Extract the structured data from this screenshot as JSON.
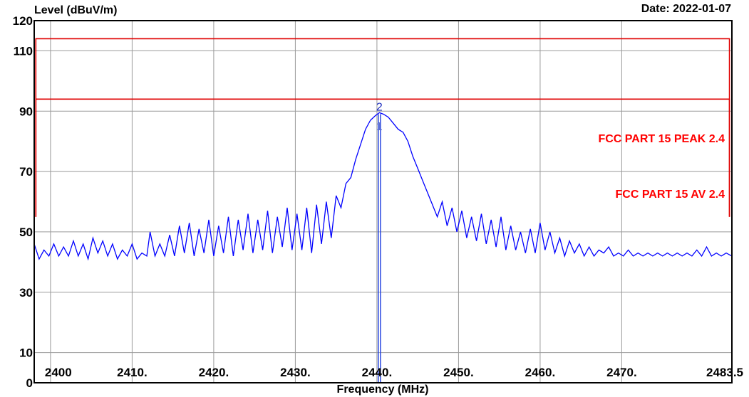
{
  "header": {
    "ylabel": "Level (dBuV/m)",
    "date": "Date: 2022-01-07"
  },
  "chart_data": {
    "type": "line",
    "xlabel": "Frequency (MHz)",
    "ylabel": "Level (dBuV/m)",
    "xlim": [
      2398,
      2483.5
    ],
    "ylim": [
      0,
      120
    ],
    "grid": true,
    "x_ticks": [
      {
        "value": 2400,
        "label": "2400"
      },
      {
        "value": 2410,
        "label": "2410."
      },
      {
        "value": 2420,
        "label": "2420."
      },
      {
        "value": 2430,
        "label": "2430."
      },
      {
        "value": 2440,
        "label": "2440."
      },
      {
        "value": 2450,
        "label": "2450."
      },
      {
        "value": 2460,
        "label": "2460."
      },
      {
        "value": 2470,
        "label": "2470."
      },
      {
        "value": 2483.5,
        "label": "2483.5"
      }
    ],
    "y_ticks": [
      0,
      10,
      30,
      50,
      70,
      90,
      110,
      120
    ],
    "limits": [
      {
        "name": "FCC PART 15 PEAK 2.4",
        "level": 114,
        "x_range": [
          2398.2,
          2483.2
        ],
        "color": "#e00000"
      },
      {
        "name": "FCC PART 15 AV 2.4",
        "level": 94,
        "x_range": [
          2398.2,
          2483.2
        ],
        "color": "#e00000"
      }
    ],
    "limit_labels_shown": [
      "FCC PART 15 PEAK 2.4",
      "FCC PART 15 AV 2.4"
    ],
    "markers": [
      {
        "label": "1",
        "x": 2440.3,
        "y": 86
      },
      {
        "label": "2",
        "x": 2440.3,
        "y": 89.5
      }
    ],
    "series": [
      {
        "color": "#0000ff",
        "points": [
          [
            2398,
            46
          ],
          [
            2398.6,
            41
          ],
          [
            2399.2,
            44
          ],
          [
            2399.8,
            42
          ],
          [
            2400.4,
            46
          ],
          [
            2401,
            42
          ],
          [
            2401.6,
            45
          ],
          [
            2402.2,
            42
          ],
          [
            2402.8,
            47
          ],
          [
            2403.4,
            42
          ],
          [
            2404,
            46
          ],
          [
            2404.6,
            41
          ],
          [
            2405.2,
            48
          ],
          [
            2405.8,
            43
          ],
          [
            2406.4,
            47
          ],
          [
            2407,
            42
          ],
          [
            2407.6,
            46
          ],
          [
            2408.2,
            41
          ],
          [
            2408.8,
            44
          ],
          [
            2409.4,
            42
          ],
          [
            2410,
            46
          ],
          [
            2410.6,
            41
          ],
          [
            2411.2,
            43
          ],
          [
            2411.8,
            42
          ],
          [
            2412.2,
            50
          ],
          [
            2412.8,
            42
          ],
          [
            2413.4,
            46
          ],
          [
            2414,
            42
          ],
          [
            2414.6,
            49
          ],
          [
            2415.2,
            42
          ],
          [
            2415.8,
            52
          ],
          [
            2416.4,
            43
          ],
          [
            2417,
            53
          ],
          [
            2417.6,
            42
          ],
          [
            2418.2,
            51
          ],
          [
            2418.8,
            43
          ],
          [
            2419.4,
            54
          ],
          [
            2420,
            42
          ],
          [
            2420.6,
            52
          ],
          [
            2421.2,
            43
          ],
          [
            2421.8,
            55
          ],
          [
            2422.4,
            42
          ],
          [
            2423,
            54
          ],
          [
            2423.6,
            44
          ],
          [
            2424.2,
            56
          ],
          [
            2424.8,
            43
          ],
          [
            2425.4,
            54
          ],
          [
            2426,
            44
          ],
          [
            2426.6,
            57
          ],
          [
            2427.2,
            43
          ],
          [
            2427.8,
            55
          ],
          [
            2428.4,
            45
          ],
          [
            2429,
            58
          ],
          [
            2429.6,
            44
          ],
          [
            2430.2,
            56
          ],
          [
            2430.8,
            44
          ],
          [
            2431.4,
            58
          ],
          [
            2432,
            43
          ],
          [
            2432.6,
            59
          ],
          [
            2433.2,
            46
          ],
          [
            2433.8,
            60
          ],
          [
            2434.4,
            48
          ],
          [
            2435,
            62
          ],
          [
            2435.6,
            58
          ],
          [
            2436.2,
            66
          ],
          [
            2436.8,
            68
          ],
          [
            2437.4,
            74
          ],
          [
            2438,
            79
          ],
          [
            2438.6,
            84
          ],
          [
            2439.2,
            87
          ],
          [
            2439.8,
            88.5
          ],
          [
            2440.3,
            89.5
          ],
          [
            2440.8,
            89
          ],
          [
            2441.4,
            88
          ],
          [
            2442,
            86
          ],
          [
            2442.6,
            84
          ],
          [
            2443.2,
            83
          ],
          [
            2443.8,
            80
          ],
          [
            2444.4,
            75
          ],
          [
            2445,
            71
          ],
          [
            2445.6,
            67
          ],
          [
            2446.2,
            63
          ],
          [
            2446.8,
            59
          ],
          [
            2447.4,
            55
          ],
          [
            2448,
            60
          ],
          [
            2448.6,
            52
          ],
          [
            2449.2,
            58
          ],
          [
            2449.8,
            50
          ],
          [
            2450.4,
            57
          ],
          [
            2451,
            48
          ],
          [
            2451.6,
            55
          ],
          [
            2452.2,
            47
          ],
          [
            2452.8,
            56
          ],
          [
            2453.4,
            46
          ],
          [
            2454,
            54
          ],
          [
            2454.6,
            45
          ],
          [
            2455.2,
            55
          ],
          [
            2455.8,
            44
          ],
          [
            2456.4,
            52
          ],
          [
            2457,
            44
          ],
          [
            2457.6,
            50
          ],
          [
            2458.2,
            43
          ],
          [
            2458.8,
            51
          ],
          [
            2459.4,
            43
          ],
          [
            2460,
            53
          ],
          [
            2460.6,
            44
          ],
          [
            2461.2,
            50
          ],
          [
            2461.8,
            43
          ],
          [
            2462.4,
            48
          ],
          [
            2463,
            42
          ],
          [
            2463.6,
            47
          ],
          [
            2464.2,
            43
          ],
          [
            2464.8,
            46
          ],
          [
            2465.4,
            42
          ],
          [
            2466,
            45
          ],
          [
            2466.6,
            42
          ],
          [
            2467.2,
            44
          ],
          [
            2467.8,
            43
          ],
          [
            2468.4,
            45
          ],
          [
            2469,
            42
          ],
          [
            2469.6,
            43
          ],
          [
            2470.2,
            42
          ],
          [
            2470.8,
            44
          ],
          [
            2471.4,
            42
          ],
          [
            2472,
            43
          ],
          [
            2472.6,
            42
          ],
          [
            2473.2,
            43
          ],
          [
            2473.8,
            42
          ],
          [
            2474.4,
            43
          ],
          [
            2475,
            42
          ],
          [
            2475.6,
            43
          ],
          [
            2476.2,
            42
          ],
          [
            2476.8,
            43
          ],
          [
            2477.4,
            42
          ],
          [
            2478,
            43
          ],
          [
            2478.6,
            42
          ],
          [
            2479.2,
            44
          ],
          [
            2479.8,
            42
          ],
          [
            2480.4,
            45
          ],
          [
            2481,
            42
          ],
          [
            2481.6,
            43
          ],
          [
            2482.2,
            42
          ],
          [
            2482.8,
            43
          ],
          [
            2483.5,
            42
          ]
        ]
      }
    ]
  }
}
